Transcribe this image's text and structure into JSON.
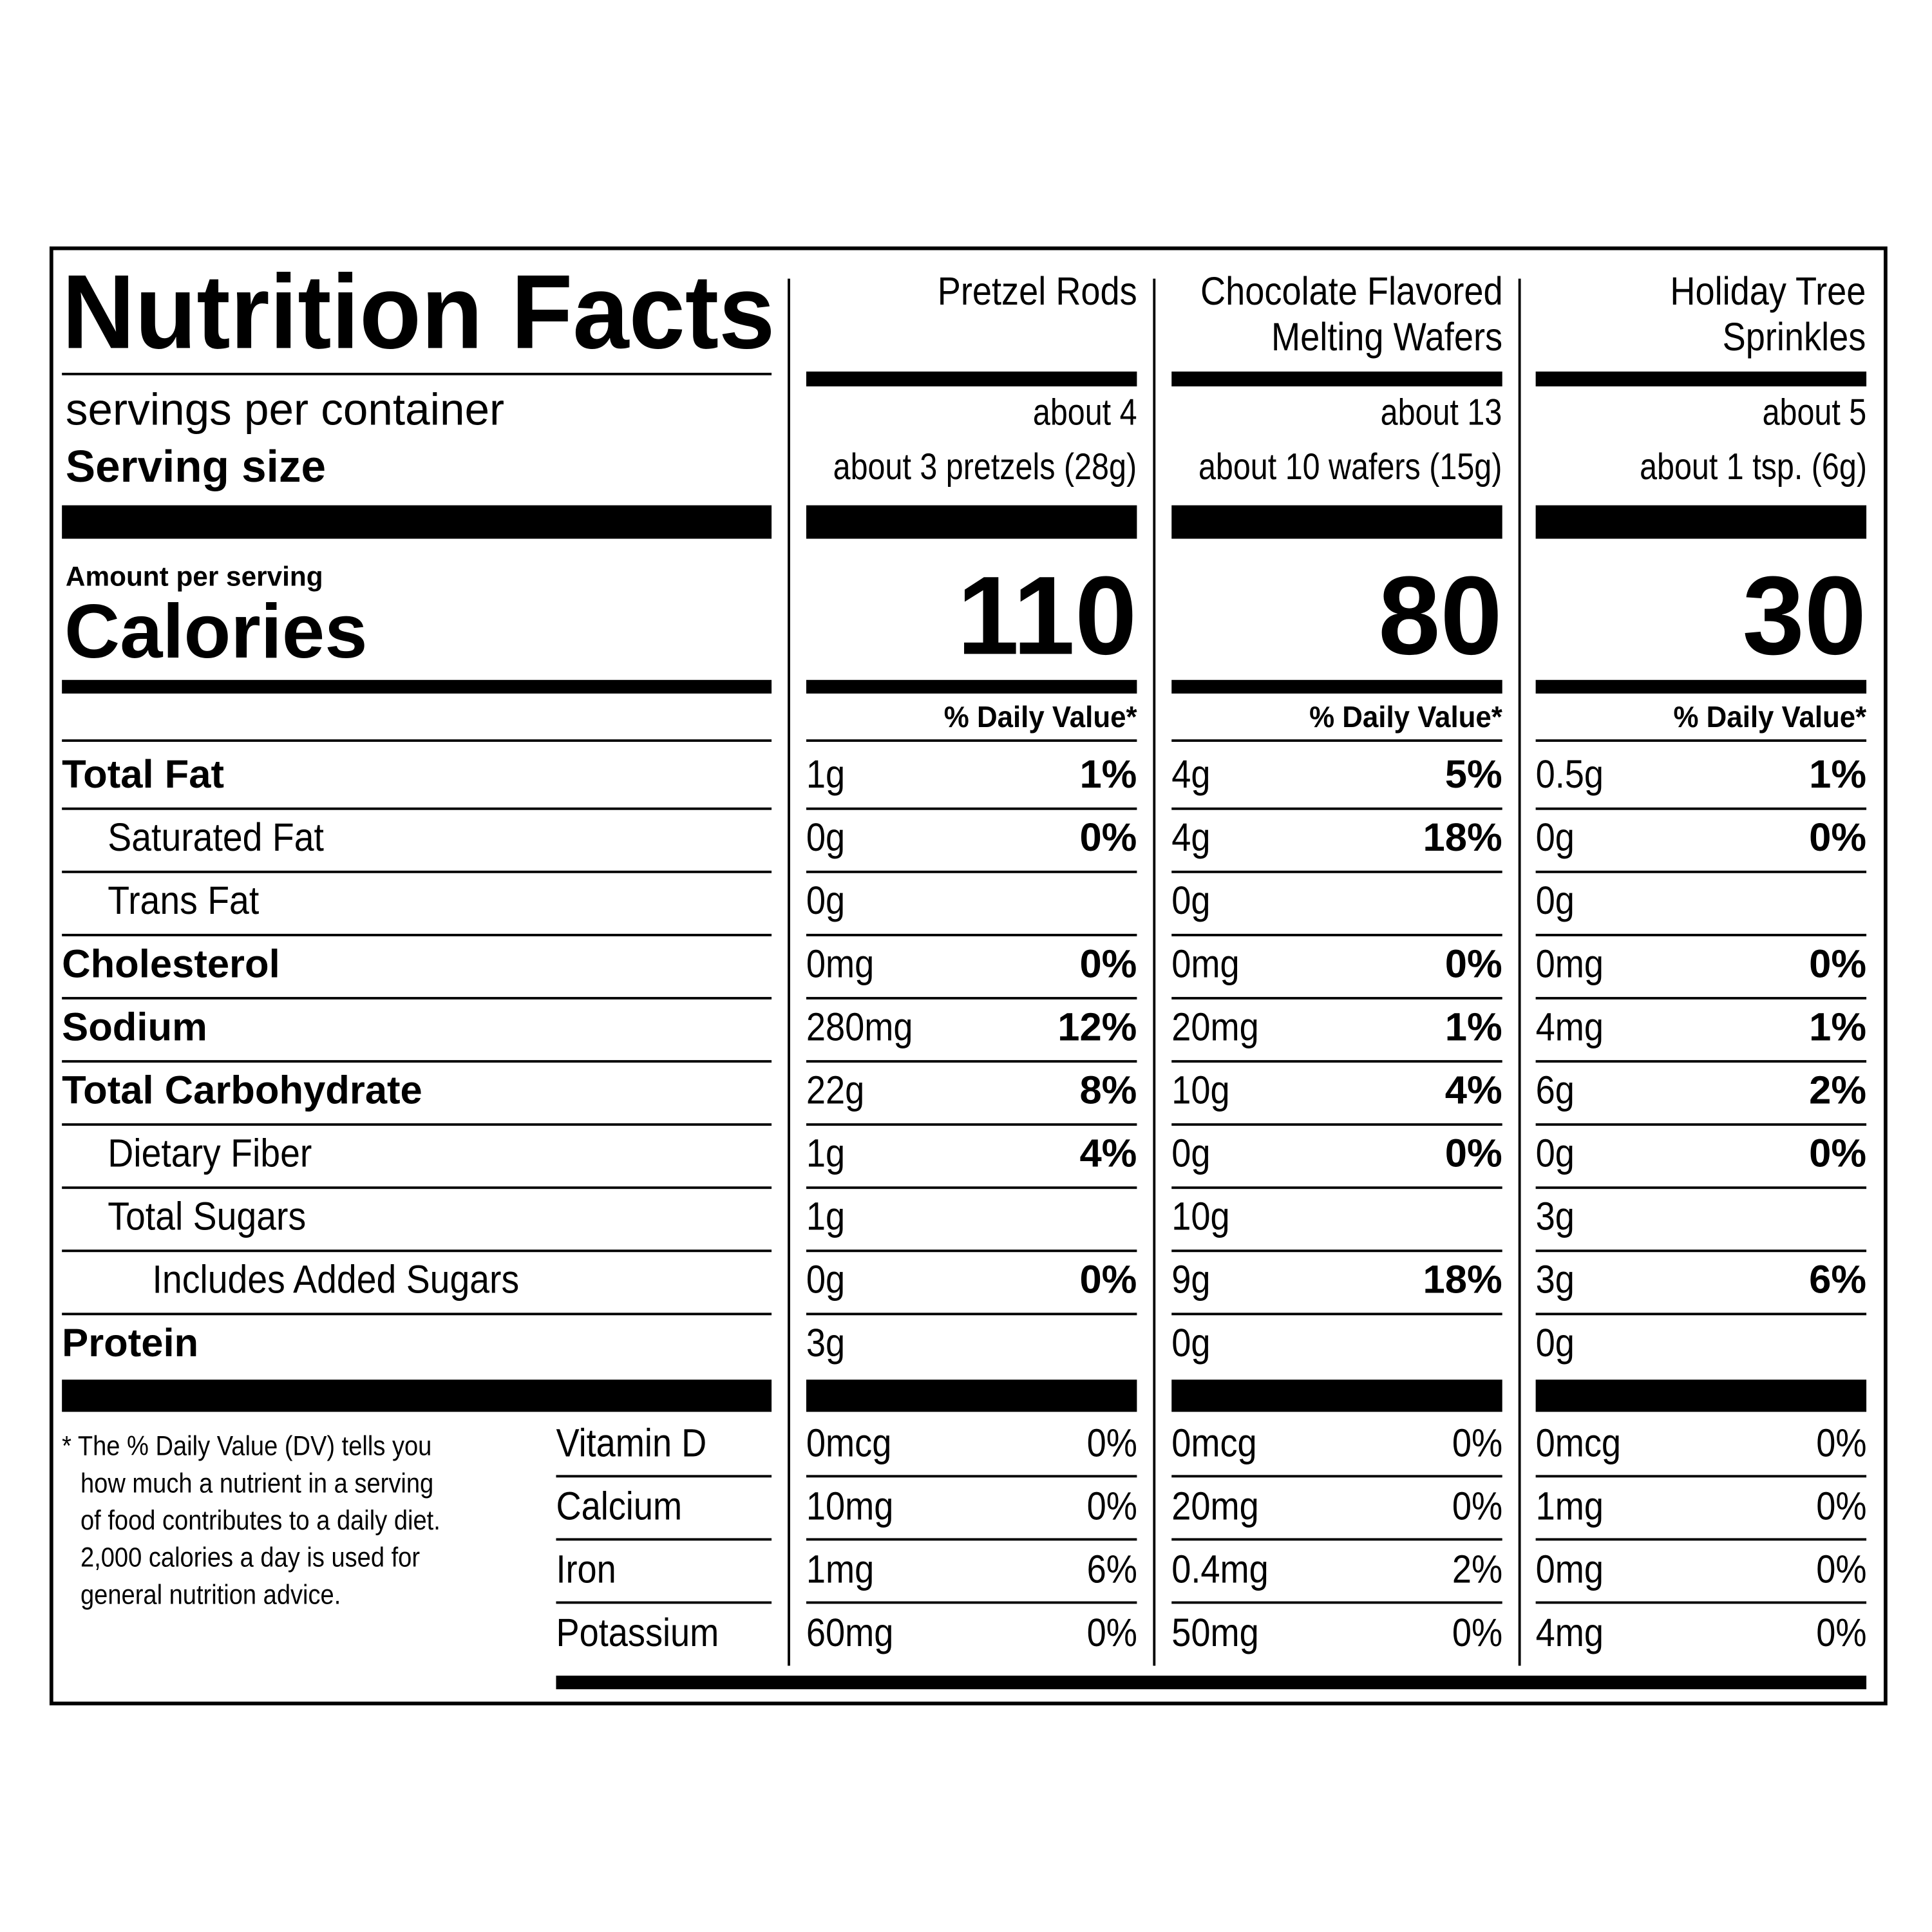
{
  "title": "Nutrition Facts",
  "labels": {
    "servings_per_container": "servings per container",
    "serving_size": "Serving size",
    "amount_per_serving": "Amount per serving",
    "calories": "Calories"
  },
  "nutrients": [
    "Total Fat",
    "Saturated Fat",
    "Trans Fat",
    "Cholesterol",
    "Sodium",
    "Total Carbohydrate",
    "Dietary Fiber",
    "Total Sugars",
    "Includes Added Sugars",
    "Protein"
  ],
  "vitamins": [
    "Vitamin D",
    "Calcium",
    "Iron",
    "Potassium"
  ],
  "footnote": [
    "* The % Daily Value (DV) tells you",
    "how much a nutrient in a serving",
    "of food contributes to a daily diet.",
    "2,000 calories a day is used for",
    "general nutrition advice."
  ],
  "products": [
    {
      "name": [
        "Pretzel Rods"
      ],
      "servings": "about 4",
      "serving_size": "about 3 pretzels (28g)",
      "calories": "110",
      "dv_header": "% Daily Value*",
      "nutrients": [
        {
          "amount": "1g",
          "dv": "1%"
        },
        {
          "amount": "0g",
          "dv": "0%"
        },
        {
          "amount": "0g"
        },
        {
          "amount": "0mg",
          "dv": "0%"
        },
        {
          "amount": "280mg",
          "dv": "12%"
        },
        {
          "amount": "22g",
          "dv": "8%"
        },
        {
          "amount": "1g",
          "dv": "4%"
        },
        {
          "amount": "1g"
        },
        {
          "amount": "0g",
          "dv": "0%"
        },
        {
          "amount": "3g"
        }
      ],
      "vitamins": [
        {
          "amount": "0mcg",
          "dv": "0%"
        },
        {
          "amount": "10mg",
          "dv": "0%"
        },
        {
          "amount": "1mg",
          "dv": "6%"
        },
        {
          "amount": "60mg",
          "dv": "0%"
        }
      ]
    },
    {
      "name": [
        "Chocolate Flavored",
        "Melting Wafers"
      ],
      "servings": "about 13",
      "serving_size": "about 10 wafers (15g)",
      "calories": "80",
      "dv_header": "% Daily Value*",
      "nutrients": [
        {
          "amount": "4g",
          "dv": "5%"
        },
        {
          "amount": "4g",
          "dv": "18%"
        },
        {
          "amount": "0g"
        },
        {
          "amount": "0mg",
          "dv": "0%"
        },
        {
          "amount": "20mg",
          "dv": "1%"
        },
        {
          "amount": "10g",
          "dv": "4%"
        },
        {
          "amount": "0g",
          "dv": "0%"
        },
        {
          "amount": "10g"
        },
        {
          "amount": "9g",
          "dv": "18%"
        },
        {
          "amount": "0g"
        }
      ],
      "vitamins": [
        {
          "amount": "0mcg",
          "dv": "0%"
        },
        {
          "amount": "20mg",
          "dv": "0%"
        },
        {
          "amount": "0.4mg",
          "dv": "2%"
        },
        {
          "amount": "50mg",
          "dv": "0%"
        }
      ]
    },
    {
      "name": [
        "Holiday Tree",
        "Sprinkles"
      ],
      "servings": "about 5",
      "serving_size": "about 1 tsp. (6g)",
      "calories": "30",
      "dv_header": "% Daily Value*",
      "nutrients": [
        {
          "amount": "0.5g",
          "dv": "1%"
        },
        {
          "amount": "0g",
          "dv": "0%"
        },
        {
          "amount": "0g"
        },
        {
          "amount": "0mg",
          "dv": "0%"
        },
        {
          "amount": "4mg",
          "dv": "1%"
        },
        {
          "amount": "6g",
          "dv": "2%"
        },
        {
          "amount": "0g",
          "dv": "0%"
        },
        {
          "amount": "3g"
        },
        {
          "amount": "3g",
          "dv": "6%"
        },
        {
          "amount": "0g"
        }
      ],
      "vitamins": [
        {
          "amount": "0mcg",
          "dv": "0%"
        },
        {
          "amount": "1mg",
          "dv": "0%"
        },
        {
          "amount": "0mg",
          "dv": "0%"
        },
        {
          "amount": "4mg",
          "dv": "0%"
        }
      ]
    }
  ]
}
